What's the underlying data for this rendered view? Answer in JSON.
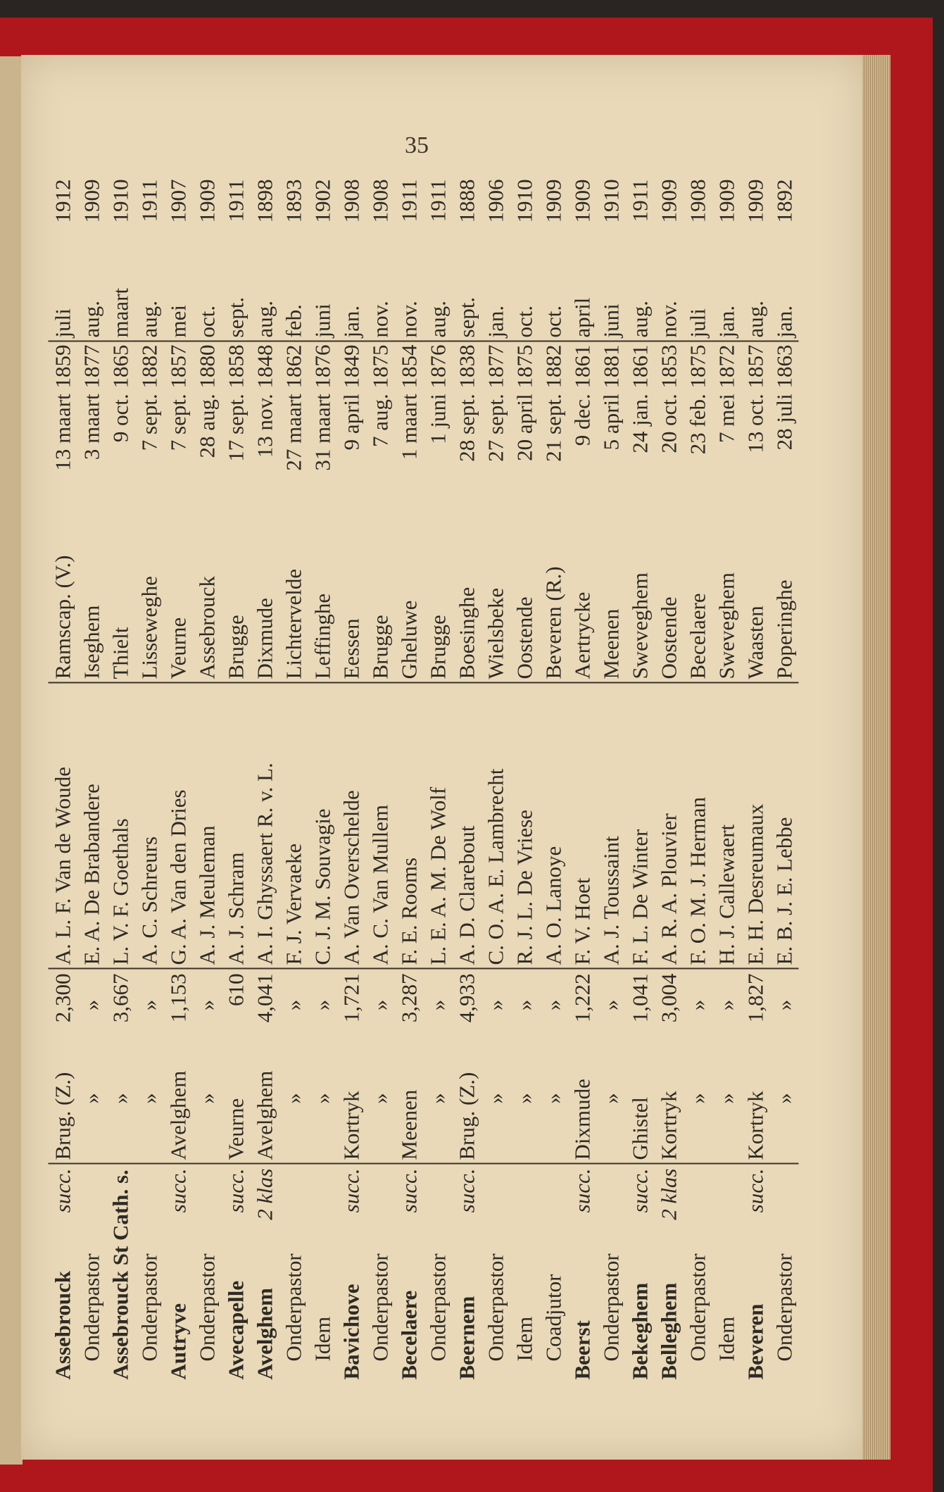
{
  "page_number": "35",
  "rows": [
    {
      "parish": "Assebrouck",
      "sub": false,
      "rank": "succ.",
      "deanery": "Brug. (Z.)",
      "population": "2,300",
      "name": "A. L. F. Van de Woude",
      "birthplace": "Ramscap. (V.)",
      "birth_date": "13 maart 1859",
      "appointed_month": "juli",
      "appointed_year": "1912"
    },
    {
      "parish": "Onderpastor",
      "sub": true,
      "rank": "",
      "deanery": "»",
      "population": "»",
      "name": "E. A. De Brabandere",
      "birthplace": "Iseghem",
      "birth_date": "3 maart 1877",
      "appointed_month": "aug.",
      "appointed_year": "1909"
    },
    {
      "parish": "Assebrouck St Cath. s.",
      "sub": false,
      "rank": "",
      "deanery": "»",
      "population": "3,667",
      "name": "L. V. F. Goethals",
      "birthplace": "Thielt",
      "birth_date": "9 oct. 1865",
      "appointed_month": "maart",
      "appointed_year": "1910"
    },
    {
      "parish": "Onderpastor",
      "sub": true,
      "rank": "",
      "deanery": "»",
      "population": "»",
      "name": "A. C. Schreurs",
      "birthplace": "Lisseweghe",
      "birth_date": "7 sept. 1882",
      "appointed_month": "aug.",
      "appointed_year": "1911"
    },
    {
      "parish": "Autryve",
      "sub": false,
      "rank": "succ.",
      "deanery": "Avelghem",
      "population": "1,153",
      "name": "G. A. Van den Dries",
      "birthplace": "Veurne",
      "birth_date": "7 sept. 1857",
      "appointed_month": "mei",
      "appointed_year": "1907"
    },
    {
      "parish": "Onderpastor",
      "sub": true,
      "rank": "",
      "deanery": "»",
      "population": "»",
      "name": "A. J. Meuleman",
      "birthplace": "Assebrouck",
      "birth_date": "28 aug. 1880",
      "appointed_month": "oct.",
      "appointed_year": "1909"
    },
    {
      "parish": "Avecapelle",
      "sub": false,
      "rank": "succ.",
      "deanery": "Veurne",
      "population": "610",
      "name": "A. J. Schram",
      "birthplace": "Brugge",
      "birth_date": "17 sept. 1858",
      "appointed_month": "sept.",
      "appointed_year": "1911"
    },
    {
      "parish": "Avelghem",
      "sub": false,
      "rank": "2 klas",
      "deanery": "Avelghem",
      "population": "4,041",
      "name": "A. I. Ghyssaert R. v. L.",
      "birthplace": "Dixmude",
      "birth_date": "13 nov. 1848",
      "appointed_month": "aug.",
      "appointed_year": "1898"
    },
    {
      "parish": "Onderpastor",
      "sub": true,
      "rank": "",
      "deanery": "»",
      "population": "»",
      "name": "F. J. Vervaeke",
      "birthplace": "Lichtervelde",
      "birth_date": "27 maart 1862",
      "appointed_month": "feb.",
      "appointed_year": "1893"
    },
    {
      "parish": "Idem",
      "sub": true,
      "rank": "",
      "deanery": "»",
      "population": "»",
      "name": "C. J. M. Souvagie",
      "birthplace": "Leffinghe",
      "birth_date": "31 maart 1876",
      "appointed_month": "juni",
      "appointed_year": "1902"
    },
    {
      "parish": "Bavichove",
      "sub": false,
      "rank": "succ.",
      "deanery": "Kortryk",
      "population": "1,721",
      "name": "A. Van Overschelde",
      "birthplace": "Eessen",
      "birth_date": "9 april 1849",
      "appointed_month": "jan.",
      "appointed_year": "1908"
    },
    {
      "parish": "Onderpastor",
      "sub": true,
      "rank": "",
      "deanery": "»",
      "population": "»",
      "name": "A. C. Van Mullem",
      "birthplace": "Brugge",
      "birth_date": "7 aug. 1875",
      "appointed_month": "nov.",
      "appointed_year": "1908"
    },
    {
      "parish": "Becelaere",
      "sub": false,
      "rank": "succ.",
      "deanery": "Meenen",
      "population": "3,287",
      "name": "F. E. Rooms",
      "birthplace": "Gheluwe",
      "birth_date": "1 maart 1854",
      "appointed_month": "nov.",
      "appointed_year": "1911"
    },
    {
      "parish": "Onderpastor",
      "sub": true,
      "rank": "",
      "deanery": "»",
      "population": "»",
      "name": "L. E. A. M. De Wolf",
      "birthplace": "Brugge",
      "birth_date": "1 juni 1876",
      "appointed_month": "aug.",
      "appointed_year": "1911"
    },
    {
      "parish": "Beernem",
      "sub": false,
      "rank": "succ.",
      "deanery": "Brug. (Z.)",
      "population": "4,933",
      "name": "A. D. Clarebout",
      "birthplace": "Boesinghe",
      "birth_date": "28 sept. 1838",
      "appointed_month": "sept.",
      "appointed_year": "1888"
    },
    {
      "parish": "Onderpastor",
      "sub": true,
      "rank": "",
      "deanery": "»",
      "population": "»",
      "name": "C. O. A. E. Lambrecht",
      "birthplace": "Wielsbeke",
      "birth_date": "27 sept. 1877",
      "appointed_month": "jan.",
      "appointed_year": "1906"
    },
    {
      "parish": "Idem",
      "sub": true,
      "rank": "",
      "deanery": "»",
      "population": "»",
      "name": "R. J. L. De Vriese",
      "birthplace": "Oostende",
      "birth_date": "20 april 1875",
      "appointed_month": "oct.",
      "appointed_year": "1910"
    },
    {
      "parish": "Coadjutor",
      "sub": true,
      "rank": "",
      "deanery": "»",
      "population": "»",
      "name": "A. O. Lanoye",
      "birthplace": "Beveren (R.)",
      "birth_date": "21 sept. 1882",
      "appointed_month": "oct.",
      "appointed_year": "1909"
    },
    {
      "parish": "Beerst",
      "sub": false,
      "rank": "succ.",
      "deanery": "Dixmude",
      "population": "1,222",
      "name": "F. V. Hoet",
      "birthplace": "Aertrycke",
      "birth_date": "9 dec. 1861",
      "appointed_month": "april",
      "appointed_year": "1909"
    },
    {
      "parish": "Onderpastor",
      "sub": true,
      "rank": "",
      "deanery": "»",
      "population": "»",
      "name": "A. J. Toussaint",
      "birthplace": "Meenen",
      "birth_date": "5 april 1881",
      "appointed_month": "juni",
      "appointed_year": "1910"
    },
    {
      "parish": "Bekeghem",
      "sub": false,
      "rank": "succ.",
      "deanery": "Ghistel",
      "population": "1,041",
      "name": "F. L. De Winter",
      "birthplace": "Sweveghem",
      "birth_date": "24 jan. 1861",
      "appointed_month": "aug.",
      "appointed_year": "1911"
    },
    {
      "parish": "Belleghem",
      "sub": false,
      "rank": "2 klas",
      "deanery": "Kortryk",
      "population": "3,004",
      "name": "A. R. A. Plouvier",
      "birthplace": "Oostende",
      "birth_date": "20 oct. 1853",
      "appointed_month": "nov.",
      "appointed_year": "1909"
    },
    {
      "parish": "Onderpastor",
      "sub": true,
      "rank": "",
      "deanery": "»",
      "population": "»",
      "name": "F. O. M. J. Herman",
      "birthplace": "Becelaere",
      "birth_date": "23 feb. 1875",
      "appointed_month": "juli",
      "appointed_year": "1908"
    },
    {
      "parish": "Idem",
      "sub": true,
      "rank": "",
      "deanery": "»",
      "population": "»",
      "name": "H. J. Callewaert",
      "birthplace": "Sweveghem",
      "birth_date": "7 mei 1872",
      "appointed_month": "jan.",
      "appointed_year": "1909"
    },
    {
      "parish": "Beveren",
      "sub": false,
      "rank": "succ.",
      "deanery": "Kortryk",
      "population": "1,827",
      "name": "E. H. Desreumaux",
      "birthplace": "Waasten",
      "birth_date": "13 oct. 1857",
      "appointed_month": "aug.",
      "appointed_year": "1909"
    },
    {
      "parish": "Onderpastor",
      "sub": true,
      "rank": "",
      "deanery": "»",
      "population": "»",
      "name": "E. B. J. E. Lebbe",
      "birthplace": "Poperinghe",
      "birth_date": "28 juli 1863",
      "appointed_month": "jan.",
      "appointed_year": "1892"
    }
  ]
}
